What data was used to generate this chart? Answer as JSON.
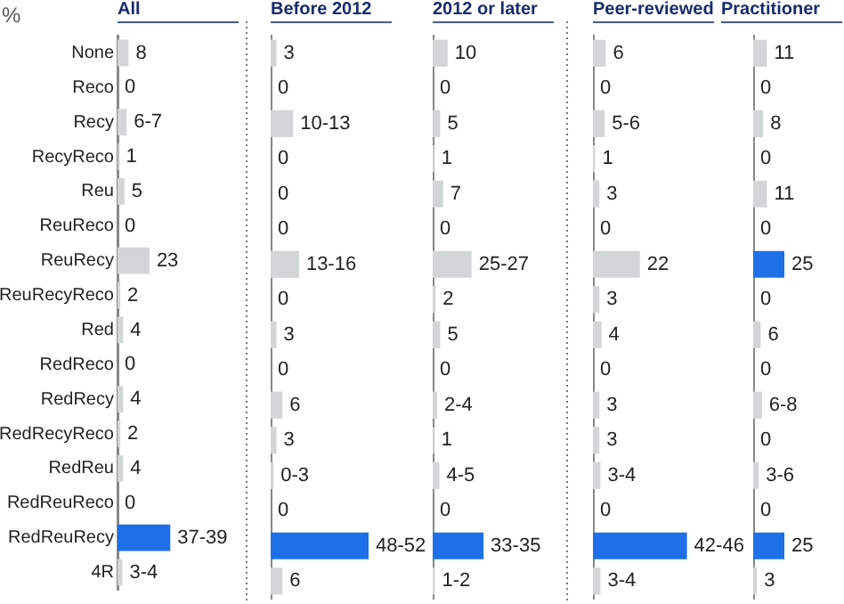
{
  "chart_data": [
    {
      "type": "bar",
      "orientation": "horizontal",
      "title": "All",
      "annotations": [
        "%"
      ],
      "tick_labels": "y",
      "categories": [
        "None",
        "Reco",
        "Recy",
        "RecyReco",
        "Reu",
        "ReuReco",
        "ReuRecy",
        "ReuRecyReco",
        "Red",
        "RedReco",
        "RedRecy",
        "RedRecyReco",
        "RedReu",
        "RedReuReco",
        "RedReuRecy",
        "4R"
      ],
      "values": [
        8,
        0,
        6.5,
        1,
        5,
        0,
        23,
        2,
        4,
        0,
        4,
        2,
        4,
        0,
        38,
        3.5
      ],
      "value_labels": [
        "8",
        "0",
        "6-7",
        "1",
        "5",
        "0",
        "23",
        "2",
        "4",
        "0",
        "4",
        "2",
        "4",
        "0",
        "37-39",
        "3-4"
      ],
      "colors": [
        "#d3d6d6",
        "#d3d6d6",
        "#d3d6d6",
        "#d3d6d6",
        "#d3d6d6",
        "#d3d6d6",
        "#d3d6d6",
        "#d3d6d6",
        "#d3d6d6",
        "#d3d6d6",
        "#d3d6d6",
        "#d3d6d6",
        "#d3d6d6",
        "#d3d6d6",
        "#1f6fe8",
        "#d3d6d6"
      ]
    },
    {
      "type": "bar",
      "orientation": "horizontal",
      "title": "Before 2012",
      "tick_labels": false,
      "categories": [
        null,
        null,
        null,
        null,
        null,
        null,
        null,
        null,
        null,
        null,
        null,
        null,
        null,
        null,
        null,
        null
      ],
      "values": [
        3,
        0,
        11.5,
        0,
        0,
        0,
        14.5,
        0,
        3,
        0,
        6,
        3,
        1.5,
        0,
        50,
        6
      ],
      "value_labels": [
        "3",
        "0",
        "10-13",
        "0",
        "0",
        "0",
        "13-16",
        "0",
        "3",
        "0",
        "6",
        "3",
        "0-3",
        "0",
        "48-52",
        "6"
      ],
      "colors": [
        "#d3d6d6",
        "#d3d6d6",
        "#d3d6d6",
        "#d3d6d6",
        "#d3d6d6",
        "#d3d6d6",
        "#d3d6d6",
        "#d3d6d6",
        "#d3d6d6",
        "#d3d6d6",
        "#d3d6d6",
        "#d3d6d6",
        "#d3d6d6",
        "#d3d6d6",
        "#1f6fe8",
        "#d3d6d6"
      ]
    },
    {
      "type": "bar",
      "orientation": "horizontal",
      "title": "2012 or later",
      "tick_labels": false,
      "categories": [
        null,
        null,
        null,
        null,
        null,
        null,
        null,
        null,
        null,
        null,
        null,
        null,
        null,
        null,
        null,
        null
      ],
      "values": [
        10,
        0,
        5,
        1,
        7,
        0,
        26,
        2,
        5,
        0,
        3,
        1,
        4.5,
        0,
        34,
        1.5
      ],
      "value_labels": [
        "10",
        "0",
        "5",
        "1",
        "7",
        "0",
        "25-27",
        "2",
        "5",
        "0",
        "2-4",
        "1",
        "4-5",
        "0",
        "33-35",
        "1-2"
      ],
      "colors": [
        "#d3d6d6",
        "#d3d6d6",
        "#d3d6d6",
        "#d3d6d6",
        "#d3d6d6",
        "#d3d6d6",
        "#d3d6d6",
        "#d3d6d6",
        "#d3d6d6",
        "#d3d6d6",
        "#d3d6d6",
        "#d3d6d6",
        "#d3d6d6",
        "#d3d6d6",
        "#1f6fe8",
        "#d3d6d6"
      ]
    },
    {
      "type": "bar",
      "orientation": "horizontal",
      "title": "Peer-reviewed",
      "tick_labels": false,
      "categories": [
        null,
        null,
        null,
        null,
        null,
        null,
        null,
        null,
        null,
        null,
        null,
        null,
        null,
        null,
        null,
        null
      ],
      "values": [
        6,
        0,
        5.5,
        1,
        3,
        0,
        22,
        3,
        4,
        0,
        3,
        3,
        3.5,
        0,
        44,
        3.5
      ],
      "value_labels": [
        "6",
        "0",
        "5-6",
        "1",
        "3",
        "0",
        "22",
        "3",
        "4",
        "0",
        "3",
        "3",
        "3-4",
        "0",
        "42-46",
        "3-4"
      ],
      "colors": [
        "#d3d6d6",
        "#d3d6d6",
        "#d3d6d6",
        "#d3d6d6",
        "#d3d6d6",
        "#d3d6d6",
        "#d3d6d6",
        "#d3d6d6",
        "#d3d6d6",
        "#d3d6d6",
        "#d3d6d6",
        "#d3d6d6",
        "#d3d6d6",
        "#d3d6d6",
        "#1f6fe8",
        "#d3d6d6"
      ]
    },
    {
      "type": "bar",
      "orientation": "horizontal",
      "title": "Practitioner",
      "tick_labels": false,
      "categories": [
        null,
        null,
        null,
        null,
        null,
        null,
        null,
        null,
        null,
        null,
        null,
        null,
        null,
        null,
        null,
        null
      ],
      "values": [
        11,
        0,
        8,
        0,
        11,
        0,
        25,
        0,
        6,
        0,
        7,
        0,
        4.5,
        0,
        25,
        3
      ],
      "value_labels": [
        "11",
        "0",
        "8",
        "0",
        "11",
        "0",
        "25",
        "0",
        "6",
        "0",
        "6-8",
        "0",
        "3-6",
        "0",
        "25",
        "3"
      ],
      "colors": [
        "#d3d6d6",
        "#d3d6d6",
        "#d3d6d6",
        "#d3d6d6",
        "#d3d6d6",
        "#d3d6d6",
        "#1f6fe8",
        "#d3d6d6",
        "#d3d6d6",
        "#d3d6d6",
        "#d3d6d6",
        "#d3d6d6",
        "#d3d6d6",
        "#d3d6d6",
        "#1f6fe8",
        "#d3d6d6"
      ]
    }
  ]
}
